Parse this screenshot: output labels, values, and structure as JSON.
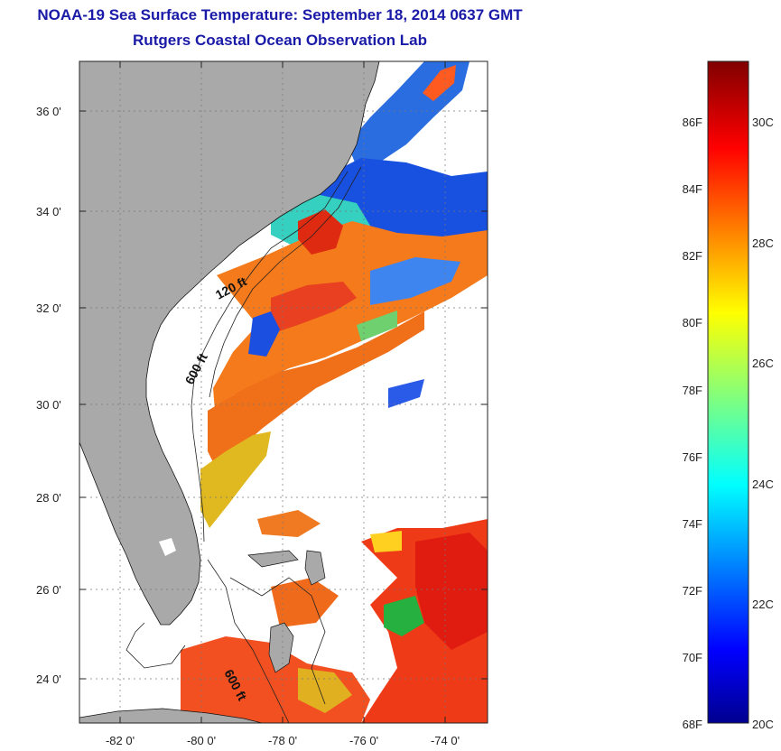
{
  "title": {
    "line1": "NOAA-19 Sea Surface Temperature:  September 18, 2014 0637 GMT",
    "line2": "Rutgers Coastal Ocean Observation Lab"
  },
  "map": {
    "lon_range": [
      -83.0,
      -73.0
    ],
    "lat_range": [
      23.0,
      37.0
    ],
    "lat_ticks": [
      {
        "value": 24,
        "label": "24 0'"
      },
      {
        "value": 26,
        "label": "26 0'"
      },
      {
        "value": 28,
        "label": "28 0'"
      },
      {
        "value": 30,
        "label": "30 0'"
      },
      {
        "value": 32,
        "label": "32 0'"
      },
      {
        "value": 34,
        "label": "34 0'"
      },
      {
        "value": 36,
        "label": "36 0'"
      }
    ],
    "lon_ticks": [
      {
        "value": -82,
        "label": "-82 0'"
      },
      {
        "value": -80,
        "label": "-80 0'"
      },
      {
        "value": -78,
        "label": "-78 0'"
      },
      {
        "value": -76,
        "label": "-76 0'"
      },
      {
        "value": -74,
        "label": "-74 0'"
      }
    ],
    "contour_labels": [
      "120 ft",
      "600 ft",
      "600 ft"
    ],
    "land_color": "#a9a9a9"
  },
  "colorbar": {
    "range_f": [
      68,
      88
    ],
    "f_labels": [
      "86F",
      "84F",
      "82F",
      "80F",
      "78F",
      "76F",
      "74F",
      "72F",
      "70F",
      "68F"
    ],
    "c_labels": [
      "30C",
      "28C",
      "26C",
      "24C",
      "22C",
      "20C"
    ],
    "colormap": "jet"
  }
}
